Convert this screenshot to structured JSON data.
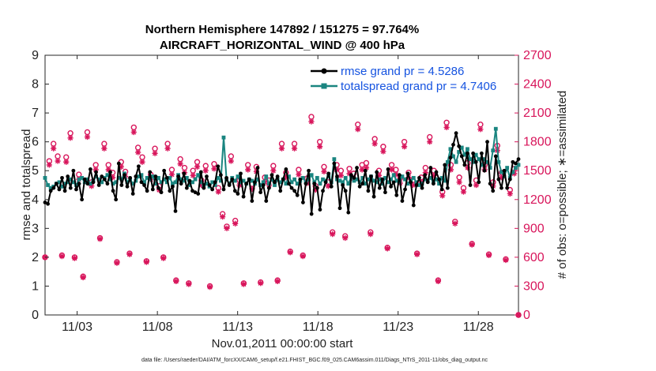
{
  "chart_data": {
    "type": "line",
    "title_line1": "Northern Hemisphere 147892 / 151275 = 97.764%",
    "title_line2": "AIRCRAFT_HORIZONTAL_WIND @ 400 hPa",
    "xlabel": "Nov.01,2011 00:00:00 start",
    "ylabel_left": "rmse and totalspread",
    "ylabel_right": "# of obs: o=possible; ∗=assimilated",
    "footnote": "data file: /Users/raeder/DAI/ATM_forcXX/CAM6_setup/f.e21.FHIST_BGC.f09_025.CAM6assim.011/Diags_NTrS_2011-11/obs_diag_output.nc",
    "xlim": [
      1.0,
      30.5
    ],
    "x_ticks": [
      3,
      8,
      13,
      18,
      23,
      28
    ],
    "x_tick_labels": [
      "11/03",
      "11/08",
      "11/13",
      "11/18",
      "11/23",
      "11/28"
    ],
    "ylim_left": [
      0,
      9
    ],
    "y_ticks_left": [
      "0",
      "1",
      "2",
      "3",
      "4",
      "5",
      "6",
      "7",
      "8",
      "9"
    ],
    "ylim_right": [
      0,
      2700
    ],
    "y_ticks_right": [
      "0",
      "300",
      "600",
      "900",
      "1200",
      "1500",
      "1800",
      "2100",
      "2400",
      "2700"
    ],
    "series": [
      {
        "name": "rmse",
        "legend": "rmse grand pr = 4.5286",
        "color": "#000000",
        "values": [
          3.9,
          3.85,
          4.3,
          4.4,
          4.55,
          4.35,
          4.75,
          4.3,
          4.8,
          4.4,
          5.0,
          4.35,
          4.55,
          4.0,
          4.7,
          4.55,
          5.05,
          4.6,
          4.95,
          4.5,
          4.8,
          4.7,
          4.55,
          4.95,
          4.3,
          4.0,
          5.25,
          4.5,
          4.85,
          4.45,
          4.75,
          4.2,
          4.8,
          5.15,
          4.6,
          4.5,
          4.3,
          4.95,
          4.35,
          4.8,
          4.4,
          4.25,
          5.0,
          4.75,
          4.3,
          4.45,
          3.6,
          4.8,
          4.55,
          4.9,
          4.4,
          4.65,
          4.3,
          4.25,
          4.2,
          4.95,
          4.4,
          4.8,
          4.5,
          4.35,
          4.6,
          5.15,
          4.85,
          4.35,
          4.75,
          4.5,
          4.7,
          4.3,
          4.2,
          4.9,
          4.1,
          4.55,
          4.7,
          3.95,
          4.6,
          5.1,
          4.25,
          4.5,
          3.95,
          4.4,
          4.85,
          4.6,
          4.8,
          4.3,
          4.7,
          5.05,
          4.55,
          4.4,
          4.3,
          4.15,
          4.7,
          3.9,
          4.55,
          5.0,
          3.5,
          4.55,
          4.4,
          3.65,
          4.3,
          4.6,
          4.9,
          4.45,
          5.25,
          4.8,
          3.7,
          4.5,
          4.3,
          3.55,
          4.85,
          4.75,
          5.1,
          4.45,
          4.55,
          5.0,
          4.3,
          4.8,
          4.1,
          4.95,
          4.4,
          4.7,
          4.25,
          5.05,
          4.45,
          4.6,
          4.15,
          4.85,
          3.95,
          4.35,
          4.9,
          4.6,
          3.8,
          4.5,
          4.75,
          4.4,
          4.85,
          4.6,
          5.1,
          4.55,
          4.95,
          4.7,
          4.35,
          5.2,
          4.4,
          5.45,
          5.9,
          6.3,
          5.85,
          5.5,
          5.2,
          5.6,
          4.5,
          5.6,
          5.3,
          4.6,
          5.6,
          5.0,
          6.0,
          4.55,
          4.3,
          5.5,
          4.7,
          4.4,
          5.0,
          4.4,
          4.7,
          5.3,
          5.25,
          5.4
        ]
      },
      {
        "name": "totalspread",
        "legend": "totalspread grand pr = 4.7406",
        "color": "#1a8580",
        "values": [
          4.75,
          4.5,
          4.4,
          4.45,
          4.55,
          4.6,
          4.45,
          4.55,
          4.6,
          4.7,
          4.6,
          4.5,
          4.7,
          4.75,
          4.6,
          4.7,
          4.55,
          4.65,
          4.8,
          4.7,
          4.6,
          4.75,
          4.85,
          4.7,
          4.55,
          4.6,
          4.75,
          4.7,
          4.9,
          4.6,
          4.7,
          4.55,
          4.65,
          4.8,
          4.85,
          4.6,
          4.75,
          4.7,
          4.8,
          4.55,
          4.75,
          4.6,
          4.7,
          4.6,
          4.75,
          4.55,
          4.6,
          4.85,
          4.7,
          4.65,
          4.75,
          4.5,
          4.6,
          4.7,
          4.85,
          4.6,
          4.5,
          4.55,
          4.45,
          4.6,
          4.5,
          4.75,
          4.65,
          6.15,
          4.7,
          4.55,
          4.75,
          4.65,
          4.8,
          4.6,
          4.65,
          4.55,
          4.7,
          4.65,
          4.55,
          4.7,
          4.5,
          4.6,
          4.8,
          4.55,
          4.7,
          4.5,
          4.7,
          4.6,
          4.7,
          4.55,
          4.8,
          4.6,
          4.7,
          4.55,
          4.65,
          4.75,
          4.6,
          4.7,
          4.85,
          4.6,
          4.75,
          4.55,
          4.7,
          4.65,
          4.8,
          4.6,
          5.4,
          4.7,
          4.65,
          4.6,
          4.75,
          4.55,
          4.8,
          4.65,
          4.7,
          4.6,
          4.75,
          4.55,
          4.7,
          4.8,
          4.65,
          4.6,
          4.7,
          4.55,
          4.75,
          4.6,
          4.7,
          4.85,
          4.65,
          4.6,
          4.8,
          4.7,
          4.55,
          4.65,
          4.75,
          4.6,
          4.5,
          4.55,
          4.7,
          4.65,
          4.75,
          4.6,
          4.7,
          4.55,
          4.75,
          4.65,
          5.3,
          5.75,
          5.5,
          5.3,
          5.65,
          5.8,
          5.55,
          5.75,
          5.4,
          5.3,
          5.55,
          5.4,
          5.2,
          5.4,
          5.3,
          5.1,
          5.7,
          6.45,
          5.3,
          4.95,
          4.8,
          5.1,
          4.75,
          4.95,
          5.1,
          5.2
        ]
      }
    ],
    "obs_series": [
      {
        "name": "possible",
        "marker": "o",
        "color": "#d8155b",
        "values": [
          600,
          1600,
          1780,
          1650,
          620,
          1640,
          1890,
          600,
          1460,
          400,
          1900,
          1380,
          1560,
          800,
          1780,
          1560,
          1480,
          550,
          1590,
          1490,
          640,
          1950,
          1740,
          1640,
          560,
          1460,
          1730,
          1340,
          600,
          1780,
          1510,
          360,
          1620,
          1530,
          330,
          1500,
          1590,
          1400,
          1550,
          300,
          1570,
          1320,
          1050,
          920,
          1650,
          980,
          1400,
          330,
          1560,
          1360,
          1540,
          340,
          1430,
          1400,
          1550,
          360,
          1780,
          1480,
          660,
          1780,
          1510,
          620,
          1420,
          2060,
          1340,
          1800,
          1540,
          1380,
          860,
          1560,
          1500,
          820,
          1520,
          1470,
          1980,
          1560,
          1580,
          860,
          1830,
          1500,
          1750,
          700,
          1560,
          1510,
          1420,
          1800,
          1480,
          1400,
          640,
          1430,
          1530,
          1850,
          1500,
          360,
          1280,
          2000,
          1560,
          970,
          1430,
          1320,
          1580,
          740,
          1400,
          1980,
          1560,
          630,
          1380,
          1760,
          1480,
          580,
          1300,
          1520,
          0
        ]
      },
      {
        "name": "assimilated",
        "marker": "*",
        "color": "#d8155b",
        "values": [
          600,
          1560,
          1730,
          1600,
          610,
          1590,
          1840,
          590,
          1410,
          390,
          1850,
          1340,
          1510,
          790,
          1730,
          1510,
          1430,
          540,
          1540,
          1440,
          630,
          1900,
          1690,
          1590,
          550,
          1410,
          1680,
          1300,
          590,
          1730,
          1460,
          350,
          1570,
          1480,
          320,
          1450,
          1540,
          1350,
          1500,
          290,
          1520,
          1280,
          1020,
          900,
          1600,
          950,
          1350,
          320,
          1510,
          1310,
          1490,
          330,
          1380,
          1350,
          1500,
          350,
          1730,
          1430,
          650,
          1730,
          1460,
          610,
          1370,
          2010,
          1300,
          1750,
          1490,
          1340,
          840,
          1510,
          1450,
          800,
          1470,
          1420,
          1930,
          1510,
          1530,
          840,
          1780,
          1450,
          1700,
          690,
          1510,
          1460,
          1370,
          1750,
          1430,
          1350,
          630,
          1380,
          1480,
          1800,
          1450,
          350,
          1240,
          1950,
          1510,
          950,
          1380,
          1280,
          1530,
          730,
          1350,
          1930,
          1510,
          620,
          1340,
          1710,
          1430,
          570,
          1260,
          1470,
          0
        ]
      }
    ]
  },
  "colors": {
    "rmse": "#000000",
    "totalspread": "#1a8580",
    "obs": "#d8155b",
    "legend_text": "#1553e0"
  }
}
